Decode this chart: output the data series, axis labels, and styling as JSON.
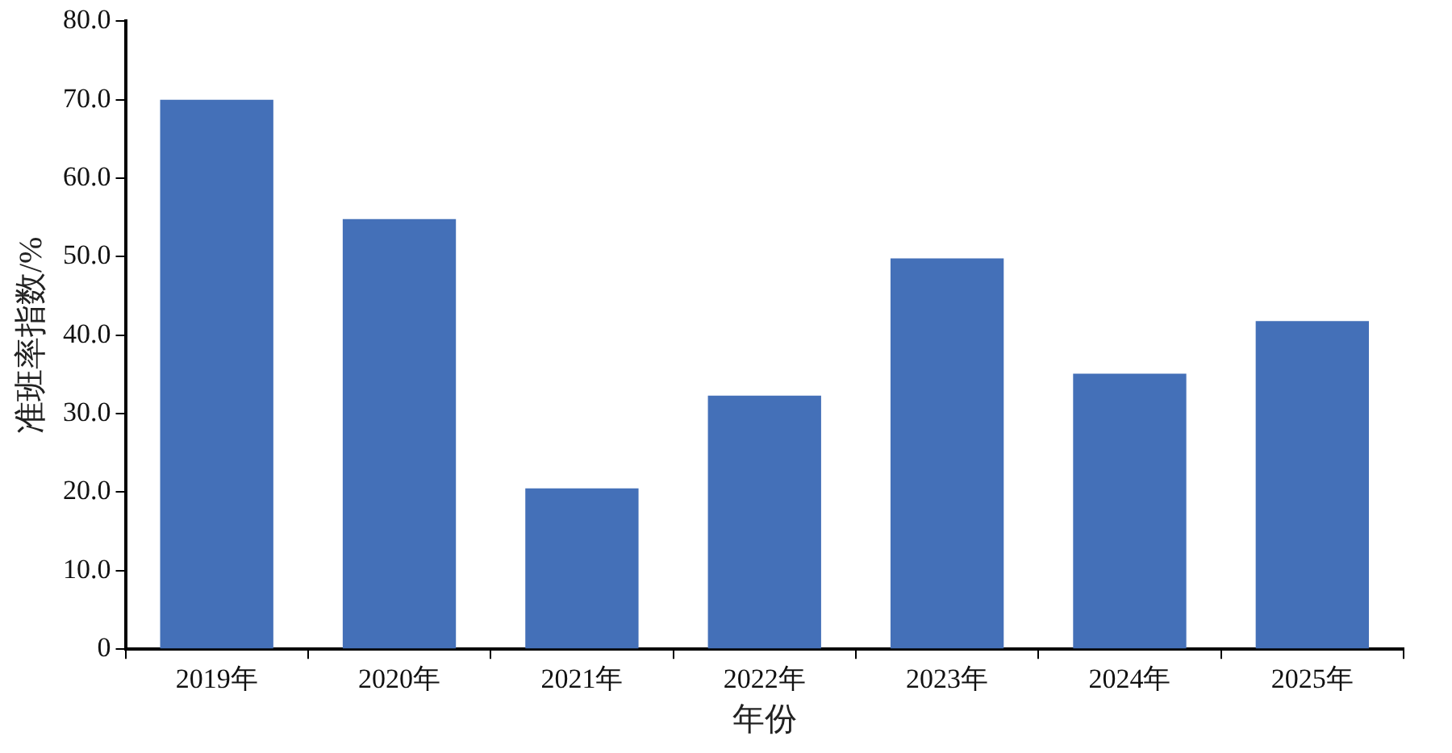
{
  "chart_data": {
    "type": "bar",
    "xlabel": "年份",
    "ylabel": "准班率指数/%",
    "categories": [
      "2019年",
      "2020年",
      "2021年",
      "2022年",
      "2023年",
      "2024年",
      "2025年"
    ],
    "values": [
      70.0,
      54.8,
      20.5,
      32.3,
      49.8,
      35.1,
      41.8
    ],
    "color": "#4470b8",
    "ylim": [
      0,
      80
    ],
    "yticks": [
      {
        "value": 0,
        "label": "0"
      },
      {
        "value": 10,
        "label": "10.0"
      },
      {
        "value": 20,
        "label": "20.0"
      },
      {
        "value": 30,
        "label": "30.0"
      },
      {
        "value": 40,
        "label": "40.0"
      },
      {
        "value": 50,
        "label": "50.0"
      },
      {
        "value": 60,
        "label": "60.0"
      },
      {
        "value": 70,
        "label": "70.0"
      },
      {
        "value": 80,
        "label": "80.0"
      }
    ],
    "grid": false,
    "legend": false
  }
}
